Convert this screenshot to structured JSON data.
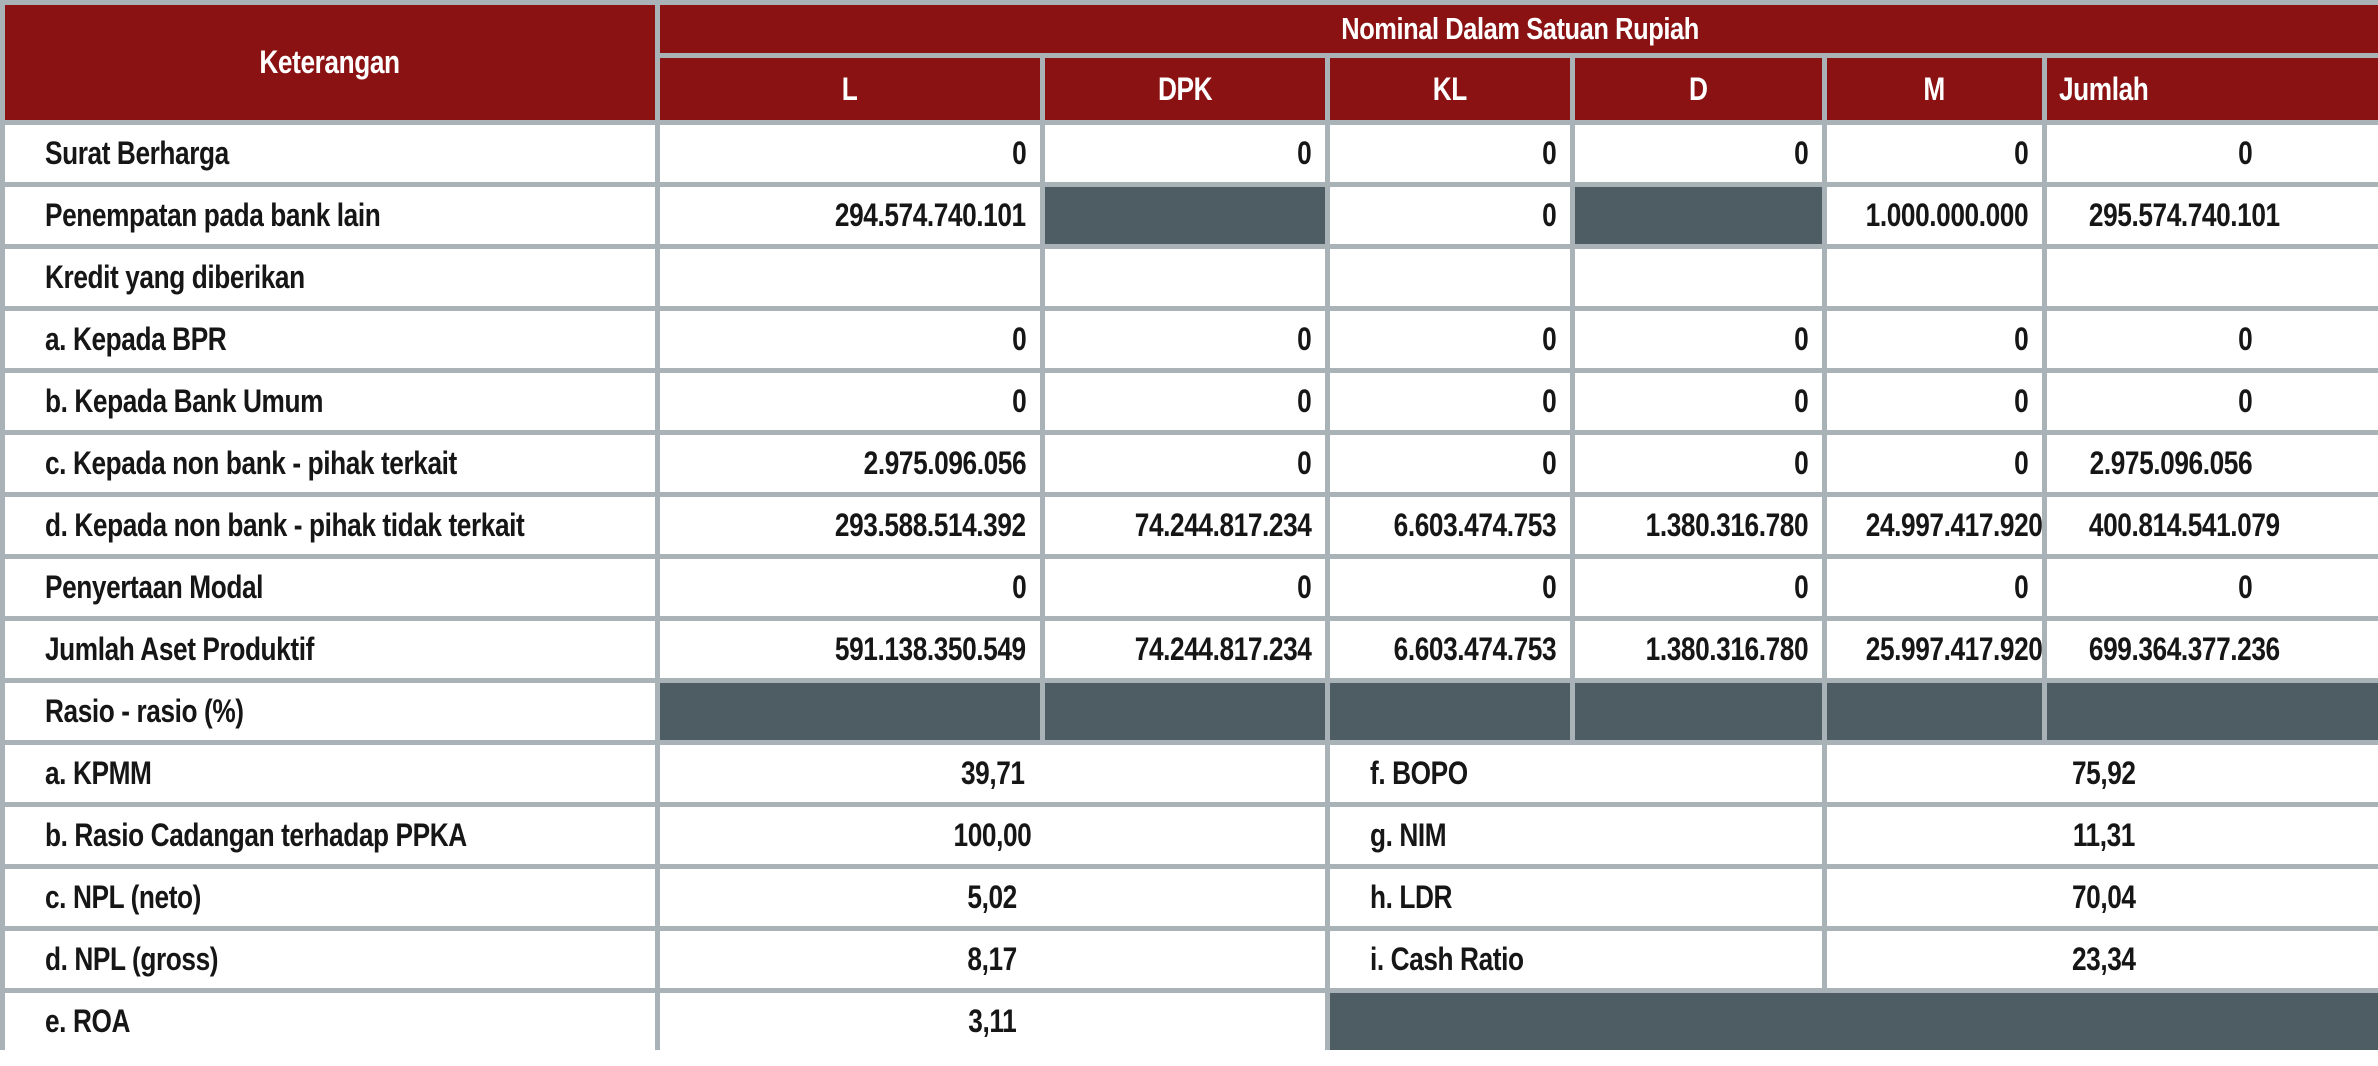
{
  "table": {
    "header": {
      "keterangan": "Keterangan",
      "group": "Nominal Dalam Satuan Rupiah",
      "columns": [
        "L",
        "DPK",
        "KL",
        "D",
        "M",
        "Jumlah"
      ]
    },
    "rows": [
      {
        "label": "Surat Berharga",
        "values": [
          "0",
          "0",
          "0",
          "0",
          "0",
          "0"
        ]
      },
      {
        "label": "Penempatan pada bank lain",
        "values": [
          "294.574.740.101",
          null,
          "0",
          null,
          "1.000.000.000",
          "295.574.740.101"
        ]
      },
      {
        "label": "Kredit yang diberikan",
        "values": [
          "",
          "",
          "",
          "",
          "",
          ""
        ]
      },
      {
        "label": "a. Kepada BPR",
        "values": [
          "0",
          "0",
          "0",
          "0",
          "0",
          "0"
        ]
      },
      {
        "label": "b. Kepada Bank Umum",
        "values": [
          "0",
          "0",
          "0",
          "0",
          "0",
          "0"
        ]
      },
      {
        "label": "c. Kepada non bank - pihak terkait",
        "values": [
          "2.975.096.056",
          "0",
          "0",
          "0",
          "0",
          "2.975.096.056"
        ]
      },
      {
        "label": "d. Kepada non bank - pihak tidak terkait",
        "values": [
          "293.588.514.392",
          "74.244.817.234",
          "6.603.474.753",
          "1.380.316.780",
          "24.997.417.920",
          "400.814.541.079"
        ]
      },
      {
        "label": "Penyertaan Modal",
        "values": [
          "0",
          "0",
          "0",
          "0",
          "0",
          "0"
        ]
      },
      {
        "label": "Jumlah Aset Produktif",
        "values": [
          "591.138.350.549",
          "74.244.817.234",
          "6.603.474.753",
          "1.380.316.780",
          "25.997.417.920",
          "699.364.377.236"
        ]
      }
    ],
    "ratio_section": {
      "header_label": "Rasio - rasio (%)",
      "rows": [
        {
          "left_label": "a. KPMM",
          "left_value": "39,71",
          "right_label": "f. BOPO",
          "right_value": "75,92"
        },
        {
          "left_label": "b. Rasio Cadangan terhadap PPKA",
          "left_value": "100,00",
          "right_label": "g. NIM",
          "right_value": "11,31"
        },
        {
          "left_label": "c. NPL (neto)",
          "left_value": "5,02",
          "right_label": "h. LDR",
          "right_value": "70,04"
        },
        {
          "left_label": "d. NPL (gross)",
          "left_value": "8,17",
          "right_label": "i. Cash Ratio",
          "right_value": "23,34"
        },
        {
          "left_label": "e. ROA",
          "left_value": "3,11"
        }
      ]
    },
    "colors": {
      "header_bg": "#8B1212",
      "header_text": "#FFFFFF",
      "shaded_cell": "#4E5C64",
      "border": "#A9B3B7",
      "body_text": "#161616"
    }
  }
}
